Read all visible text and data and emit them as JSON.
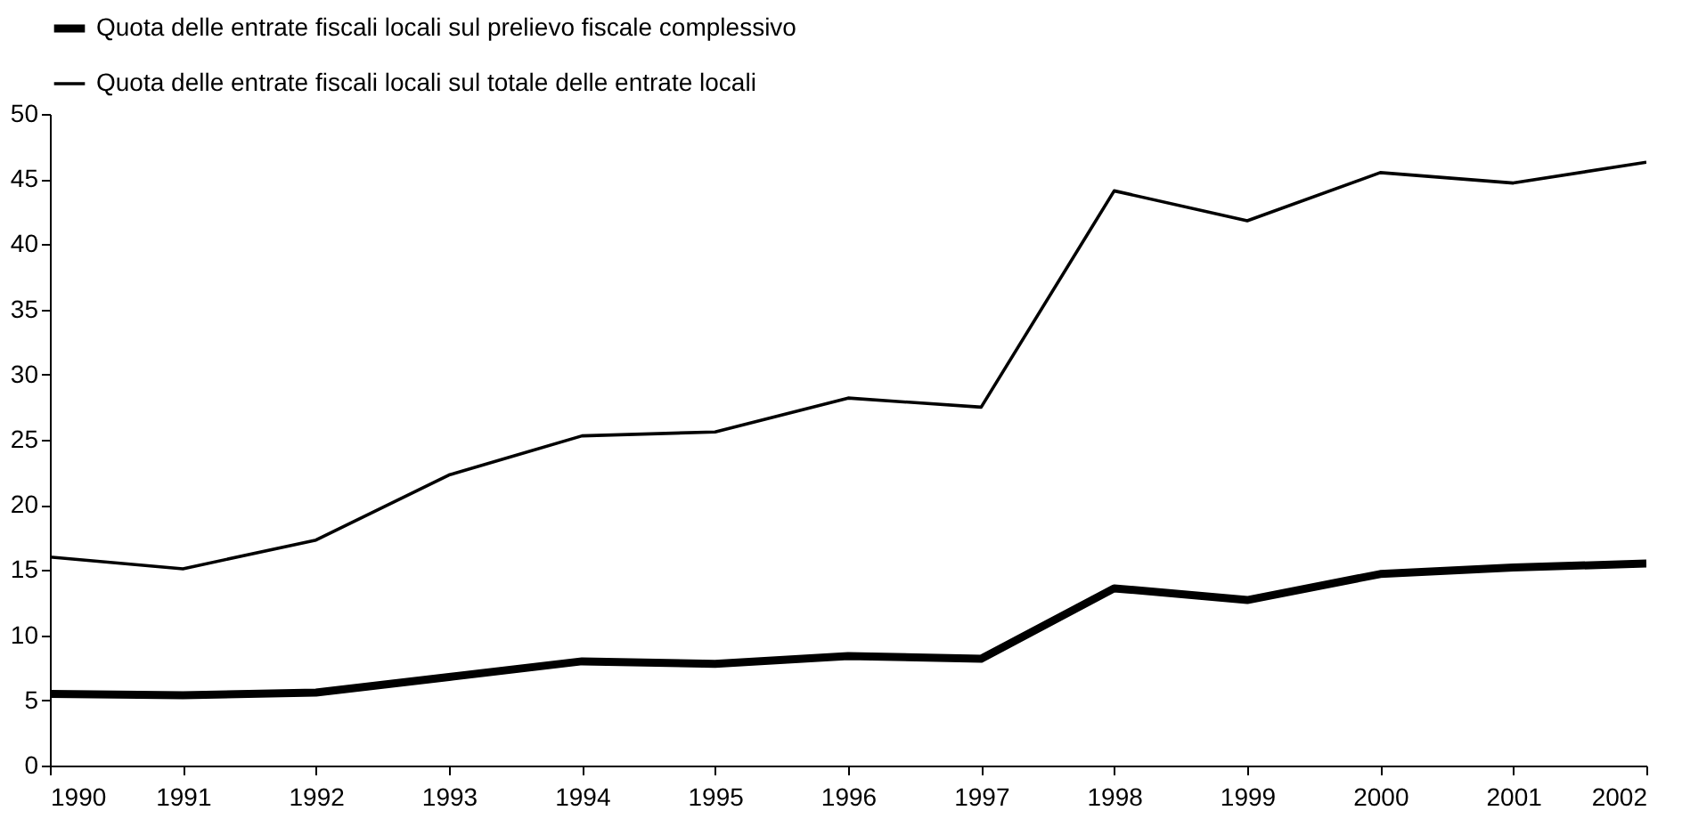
{
  "chart_data": {
    "type": "line",
    "x": [
      1990,
      1991,
      1992,
      1993,
      1994,
      1995,
      1996,
      1997,
      1998,
      1999,
      2000,
      2001,
      2002
    ],
    "series": [
      {
        "name": "Quota delle entrate fiscali locali sul prelievo fiscale complessivo",
        "color": "#000000",
        "values": [
          5.5,
          5.4,
          5.6,
          6.8,
          8.0,
          7.8,
          8.4,
          8.2,
          13.6,
          12.7,
          14.7,
          15.2,
          15.5
        ]
      },
      {
        "name": "Quota delle entrate fiscali locali sul totale delle entrate locali",
        "color": "#000000",
        "values": [
          16.0,
          15.1,
          17.3,
          22.3,
          25.3,
          25.6,
          28.2,
          27.5,
          44.1,
          41.8,
          45.5,
          44.7,
          46.3
        ]
      }
    ],
    "xlim": [
      1990,
      2002
    ],
    "xticks": [
      1990,
      1991,
      1992,
      1993,
      1994,
      1995,
      1996,
      1997,
      1998,
      1999,
      2000,
      2001,
      2002
    ],
    "ylim": [
      0,
      50
    ],
    "yticks": [
      0,
      5,
      10,
      15,
      20,
      25,
      30,
      35,
      40,
      45,
      50
    ],
    "grid": false,
    "legend": "top",
    "marker": "none",
    "line_style": "solid"
  }
}
